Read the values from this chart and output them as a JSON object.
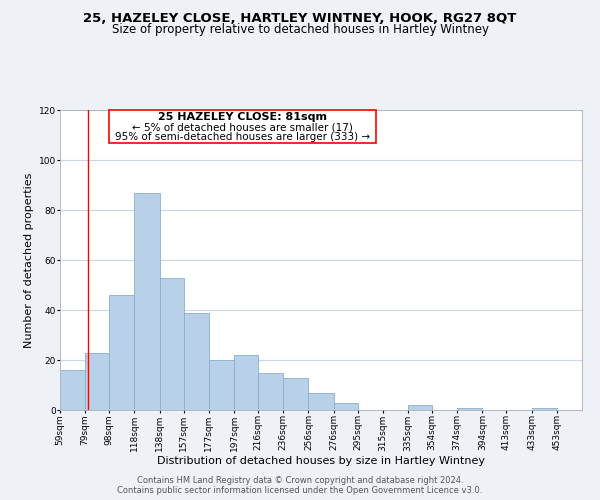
{
  "title": "25, HAZELEY CLOSE, HARTLEY WINTNEY, HOOK, RG27 8QT",
  "subtitle": "Size of property relative to detached houses in Hartley Wintney",
  "xlabel": "Distribution of detached houses by size in Hartley Wintney",
  "ylabel": "Number of detached properties",
  "bar_color": "#b8d0e8",
  "bar_edgecolor": "#8ab0cc",
  "bar_left_edges": [
    59,
    79,
    98,
    118,
    138,
    157,
    177,
    197,
    216,
    236,
    256,
    276,
    295,
    315,
    335,
    354,
    374,
    394,
    413,
    433
  ],
  "bar_heights": [
    16,
    23,
    46,
    87,
    53,
    39,
    20,
    22,
    15,
    13,
    7,
    3,
    0,
    0,
    2,
    0,
    1,
    0,
    0,
    1
  ],
  "bar_widths": [
    20,
    19,
    20,
    20,
    19,
    20,
    20,
    19,
    20,
    20,
    20,
    19,
    20,
    20,
    19,
    20,
    20,
    19,
    20,
    20
  ],
  "tick_labels": [
    "59sqm",
    "79sqm",
    "98sqm",
    "118sqm",
    "138sqm",
    "157sqm",
    "177sqm",
    "197sqm",
    "216sqm",
    "236sqm",
    "256sqm",
    "276sqm",
    "295sqm",
    "315sqm",
    "335sqm",
    "354sqm",
    "374sqm",
    "394sqm",
    "413sqm",
    "433sqm",
    "453sqm"
  ],
  "tick_positions": [
    59,
    79,
    98,
    118,
    138,
    157,
    177,
    197,
    216,
    236,
    256,
    276,
    295,
    315,
    335,
    354,
    374,
    394,
    413,
    433,
    453
  ],
  "xlim": [
    59,
    473
  ],
  "ylim": [
    0,
    120
  ],
  "yticks": [
    0,
    20,
    40,
    60,
    80,
    100,
    120
  ],
  "property_line_x": 81,
  "ann_title": "25 HAZELEY CLOSE: 81sqm",
  "ann_line1": "← 5% of detached houses are smaller (17)",
  "ann_line2": "95% of semi-detached houses are larger (333) →",
  "footer1": "Contains HM Land Registry data © Crown copyright and database right 2024.",
  "footer2": "Contains public sector information licensed under the Open Government Licence v3.0.",
  "background_color": "#eef2f7",
  "plot_background": "#ffffff",
  "grid_color": "#c8d8e8",
  "title_fontsize": 9.5,
  "subtitle_fontsize": 8.5,
  "xlabel_fontsize": 8,
  "ylabel_fontsize": 8,
  "tick_fontsize": 6.5,
  "ann_fontsize": 8,
  "footer_fontsize": 6
}
